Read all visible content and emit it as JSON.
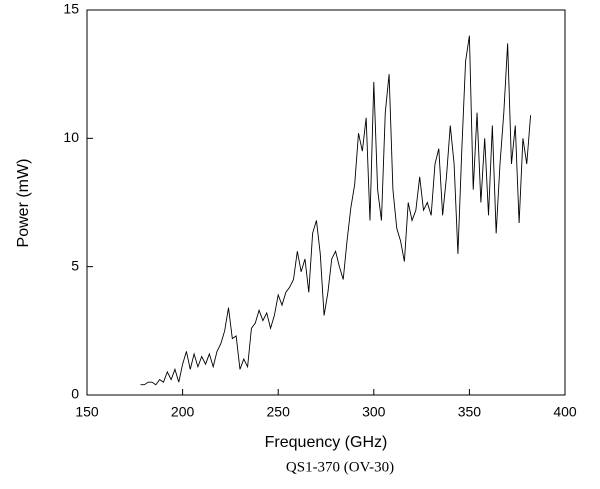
{
  "chart_data": {
    "type": "line",
    "xlabel": "Frequency (GHz)",
    "ylabel": "Power (mW)",
    "caption": "QS1-370 (OV-30)",
    "x": [
      178,
      180,
      182,
      184,
      186,
      188,
      190,
      192,
      194,
      196,
      198,
      200,
      202,
      204,
      206,
      208,
      210,
      212,
      214,
      216,
      218,
      220,
      222,
      224,
      226,
      228,
      230,
      232,
      234,
      236,
      238,
      240,
      242,
      244,
      246,
      248,
      250,
      252,
      254,
      256,
      258,
      260,
      262,
      264,
      266,
      268,
      270,
      272,
      274,
      276,
      278,
      280,
      282,
      284,
      286,
      288,
      290,
      292,
      294,
      296,
      298,
      300,
      302,
      304,
      306,
      308,
      310,
      312,
      314,
      316,
      318,
      320,
      322,
      324,
      326,
      328,
      330,
      332,
      334,
      336,
      338,
      340,
      342,
      344,
      346,
      348,
      350,
      352,
      354,
      356,
      358,
      360,
      362,
      364,
      366,
      368,
      370,
      372,
      374,
      376,
      378,
      380,
      382
    ],
    "series": [
      {
        "name": "QS1-370",
        "color": "#000000",
        "values": [
          0.4,
          0.4,
          0.5,
          0.5,
          0.4,
          0.6,
          0.5,
          0.9,
          0.6,
          1.0,
          0.5,
          1.2,
          1.7,
          1.0,
          1.6,
          1.1,
          1.5,
          1.2,
          1.6,
          1.1,
          1.7,
          2.0,
          2.5,
          3.4,
          2.2,
          2.3,
          1.0,
          1.4,
          1.1,
          2.6,
          2.8,
          3.3,
          2.9,
          3.2,
          2.6,
          3.1,
          3.9,
          3.5,
          4.0,
          4.2,
          4.5,
          5.6,
          4.8,
          5.3,
          4.0,
          6.3,
          6.8,
          5.5,
          3.1,
          4.0,
          5.3,
          5.6,
          5.0,
          4.5,
          6.0,
          7.3,
          8.2,
          10.2,
          9.5,
          10.8,
          6.8,
          12.2,
          8.0,
          6.8,
          11.0,
          12.5,
          8.0,
          6.5,
          6.0,
          5.2,
          7.5,
          6.8,
          7.2,
          8.5,
          7.2,
          7.5,
          7.0,
          9.0,
          9.6,
          7.0,
          8.5,
          10.5,
          9.0,
          5.5,
          9.5,
          13.0,
          14.0,
          8.0,
          11.0,
          7.5,
          10.0,
          7.0,
          10.5,
          6.3,
          9.0,
          11.0,
          13.7,
          9.0,
          10.5,
          6.7,
          10.0,
          9.0,
          10.9
        ]
      }
    ],
    "xlim": [
      150,
      400
    ],
    "xticks": [
      150,
      200,
      250,
      300,
      350,
      400
    ],
    "ylim": [
      0,
      15
    ],
    "yticks": [
      0,
      5,
      10,
      15
    ],
    "grid": false
  }
}
